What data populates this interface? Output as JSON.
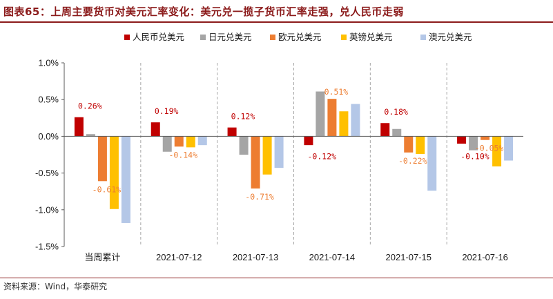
{
  "title": "图表65：上周主要货币对美元汇率变化：美元兑一揽子货币汇率走强，兑人民币走弱",
  "source": "资料来源：Wind，华泰研究",
  "colors": {
    "title": "#8b1a1a",
    "series": [
      "#c00000",
      "#a5a5a5",
      "#ed7d31",
      "#ffc000",
      "#b4c7e7"
    ],
    "label_cny": "#c00000",
    "label_eur": "#ed7d31"
  },
  "chart_data": {
    "type": "bar",
    "categories": [
      "当周累计",
      "2021-07-12",
      "2021-07-13",
      "2021-07-14",
      "2021-07-15",
      "2021-07-16"
    ],
    "series": [
      {
        "name": "人民币兑美元",
        "values": [
          0.26,
          0.19,
          0.12,
          -0.12,
          0.18,
          -0.1
        ]
      },
      {
        "name": "日元兑美元",
        "values": [
          0.03,
          -0.21,
          -0.25,
          0.61,
          0.1,
          -0.19
        ]
      },
      {
        "name": "欧元兑美元",
        "values": [
          -0.61,
          -0.14,
          -0.71,
          0.51,
          -0.22,
          -0.05
        ]
      },
      {
        "name": "英镑兑美元",
        "values": [
          -0.99,
          -0.15,
          -0.52,
          0.34,
          -0.24,
          -0.41
        ]
      },
      {
        "name": "澳元兑美元",
        "values": [
          -1.18,
          -0.12,
          -0.43,
          0.44,
          -0.74,
          -0.33
        ]
      }
    ],
    "data_labels": [
      {
        "series": 0,
        "index": 0,
        "text": "0.26%"
      },
      {
        "series": 2,
        "index": 0,
        "text": "-0.61%"
      },
      {
        "series": 0,
        "index": 1,
        "text": "0.19%"
      },
      {
        "series": 2,
        "index": 1,
        "text": "-0.14%"
      },
      {
        "series": 0,
        "index": 2,
        "text": "0.12%"
      },
      {
        "series": 2,
        "index": 2,
        "text": "-0.71%"
      },
      {
        "series": 0,
        "index": 3,
        "text": "-0.12%"
      },
      {
        "series": 2,
        "index": 3,
        "text": "0.51%"
      },
      {
        "series": 0,
        "index": 4,
        "text": "0.18%"
      },
      {
        "series": 2,
        "index": 4,
        "text": "-0.22%"
      },
      {
        "series": 0,
        "index": 5,
        "text": "-0.10%"
      },
      {
        "series": 2,
        "index": 5,
        "text": "-0.05%"
      }
    ],
    "y_ticks": [
      1.0,
      0.5,
      0.0,
      -0.5,
      -1.0,
      -1.5
    ],
    "y_tick_labels": [
      "1.0%",
      "0.5%",
      "0.0%",
      "-0.5%",
      "-1.0%",
      "-1.5%"
    ],
    "ylim": [
      -1.5,
      1.0
    ],
    "grid": "vertical dashed separators between categories",
    "legend": "top"
  }
}
